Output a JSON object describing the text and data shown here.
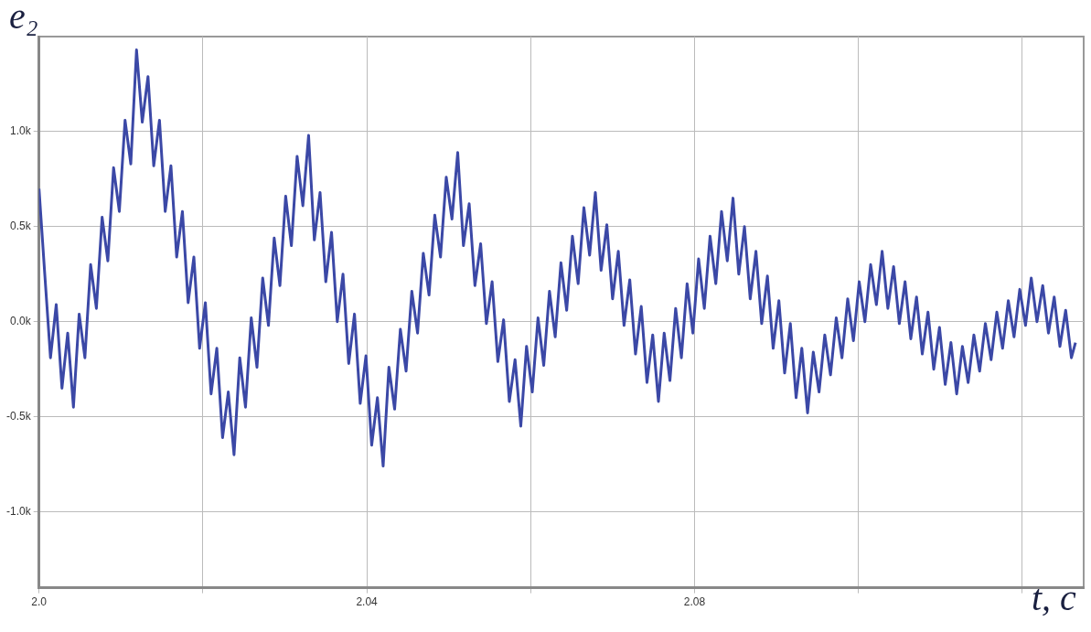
{
  "chart_data": {
    "type": "line",
    "xlabel": "t, c",
    "ylabel": "e₂",
    "xlim": [
      2.0,
      2.1275
    ],
    "ylim": [
      -1400,
      1500
    ],
    "xticks": [
      {
        "value": 2.0,
        "label": "2.0"
      },
      {
        "value": 2.02,
        "label": null
      },
      {
        "value": 2.04,
        "label": "2.04"
      },
      {
        "value": 2.06,
        "label": null
      },
      {
        "value": 2.08,
        "label": "2.08"
      },
      {
        "value": 2.1,
        "label": null
      },
      {
        "value": 2.12,
        "label": null
      }
    ],
    "yticks": [
      {
        "value": -1000,
        "label": "-1.0k"
      },
      {
        "value": -500,
        "label": "-0.5k"
      },
      {
        "value": 0,
        "label": "0.0k"
      },
      {
        "value": 500,
        "label": "0.5k"
      },
      {
        "value": 1000,
        "label": "1.0k"
      }
    ],
    "grid": true,
    "marker": "none",
    "line_style": "solid",
    "series": [
      {
        "color": "#3b48a6",
        "x": [
          2.0,
          2.0007,
          2.0014,
          2.0021,
          2.0028,
          2.0035,
          2.0042,
          2.0049,
          2.0056,
          2.0063,
          2.007,
          2.0077,
          2.0084,
          2.0091,
          2.0098,
          2.0105,
          2.0112,
          2.0119,
          2.0126,
          2.0133,
          2.014,
          2.0147,
          2.0154,
          2.0161,
          2.0168,
          2.0175,
          2.0182,
          2.0189,
          2.0196,
          2.0203,
          2.021,
          2.0217,
          2.0224,
          2.0231,
          2.0238,
          2.0245,
          2.0252,
          2.0259,
          2.0266,
          2.0273,
          2.028,
          2.0287,
          2.0294,
          2.0301,
          2.0308,
          2.0315,
          2.0322,
          2.0329,
          2.0336,
          2.0343,
          2.035,
          2.0357,
          2.0364,
          2.0371,
          2.0378,
          2.0385,
          2.0392,
          2.0399,
          2.0406,
          2.0413,
          2.042,
          2.0427,
          2.0434,
          2.0441,
          2.0448,
          2.0455,
          2.0462,
          2.0469,
          2.0476,
          2.0483,
          2.049,
          2.0497,
          2.0504,
          2.0511,
          2.0518,
          2.0525,
          2.0532,
          2.0539,
          2.0546,
          2.0553,
          2.056,
          2.0567,
          2.0574,
          2.0581,
          2.0588,
          2.0595,
          2.0602,
          2.0609,
          2.0616,
          2.0623,
          2.063,
          2.0637,
          2.0644,
          2.0651,
          2.0658,
          2.0665,
          2.0672,
          2.0679,
          2.0686,
          2.0693,
          2.07,
          2.0707,
          2.0714,
          2.0721,
          2.0728,
          2.0735,
          2.0742,
          2.0749,
          2.0756,
          2.0763,
          2.077,
          2.0777,
          2.0784,
          2.0791,
          2.0798,
          2.0805,
          2.0812,
          2.0819,
          2.0826,
          2.0833,
          2.084,
          2.0847,
          2.0854,
          2.0861,
          2.0868,
          2.0875,
          2.0882,
          2.0889,
          2.0896,
          2.0903,
          2.091,
          2.0917,
          2.0924,
          2.0931,
          2.0938,
          2.0945,
          2.0952,
          2.0959,
          2.0966,
          2.0973,
          2.098,
          2.0987,
          2.0994,
          2.1001,
          2.1008,
          2.1015,
          2.1022,
          2.1029,
          2.1036,
          2.1043,
          2.105,
          2.1057,
          2.1064,
          2.1071,
          2.1078,
          2.1085,
          2.1092,
          2.1099,
          2.1106,
          2.1113,
          2.112,
          2.1127,
          2.1134,
          2.1141,
          2.1148,
          2.1155,
          2.1162,
          2.1169,
          2.1176,
          2.1183,
          2.119,
          2.1197,
          2.1204,
          2.1211,
          2.1218,
          2.1225,
          2.1232,
          2.1239,
          2.1246,
          2.1253,
          2.126,
          2.1265
        ],
        "values": [
          700,
          250,
          -190,
          90,
          -350,
          -60,
          -450,
          40,
          -190,
          300,
          70,
          550,
          320,
          810,
          580,
          1060,
          830,
          1430,
          1050,
          1290,
          820,
          1060,
          580,
          820,
          340,
          580,
          100,
          340,
          -140,
          100,
          -380,
          -140,
          -610,
          -370,
          -700,
          -190,
          -450,
          20,
          -240,
          230,
          -20,
          440,
          190,
          660,
          400,
          870,
          610,
          980,
          430,
          680,
          210,
          470,
          0,
          250,
          -220,
          40,
          -430,
          -180,
          -650,
          -400,
          -760,
          -240,
          -460,
          -40,
          -260,
          160,
          -60,
          360,
          140,
          560,
          340,
          760,
          540,
          890,
          400,
          620,
          190,
          410,
          -10,
          210,
          -210,
          10,
          -420,
          -200,
          -550,
          -130,
          -370,
          20,
          -230,
          160,
          -80,
          310,
          60,
          450,
          200,
          600,
          350,
          680,
          270,
          510,
          120,
          370,
          -20,
          220,
          -170,
          80,
          -320,
          -70,
          -420,
          -60,
          -310,
          70,
          -190,
          200,
          -60,
          330,
          70,
          450,
          200,
          580,
          320,
          650,
          250,
          500,
          120,
          370,
          -10,
          240,
          -140,
          110,
          -270,
          -10,
          -400,
          -140,
          -480,
          -160,
          -370,
          -70,
          -280,
          20,
          -190,
          120,
          -100,
          210,
          0,
          300,
          90,
          370,
          70,
          290,
          -10,
          210,
          -90,
          130,
          -170,
          50,
          -250,
          -30,
          -330,
          -110,
          -380,
          -130,
          -320,
          -70,
          -260,
          -10,
          -200,
          50,
          -140,
          110,
          -80,
          170,
          -20,
          230,
          0,
          190,
          -60,
          130,
          -130,
          60,
          -190,
          -110
        ]
      }
    ]
  }
}
